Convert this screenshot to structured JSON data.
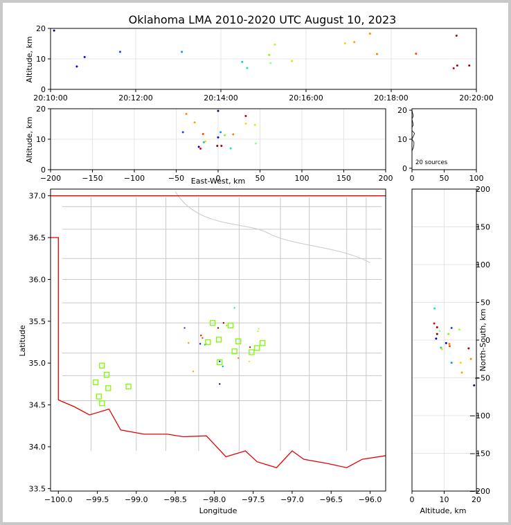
{
  "title": "Oklahoma LMA 2010-2020 UTC August 10, 2023",
  "source_count_label": "20 sources",
  "chart_data": [
    {
      "type": "scatter",
      "id": "time_altitude",
      "ylabel": "Altitude, km",
      "x_ticks": [
        "20:10:00",
        "20:12:00",
        "20:14:00",
        "20:16:00",
        "20:18:00",
        "20:20:00"
      ],
      "y_ticks": [
        0,
        10,
        20
      ],
      "xlim": [
        "20:10:00",
        "20:20:00"
      ],
      "ylim": [
        0,
        20
      ],
      "grid": true
    },
    {
      "type": "scatter",
      "id": "ew_altitude",
      "xlabel": "East-West, km",
      "ylabel": "Altitude, km",
      "x_ticks": [
        -200,
        -150,
        -100,
        -50,
        0,
        50,
        100,
        150,
        200
      ],
      "y_ticks": [
        0,
        10,
        20
      ],
      "xlim": [
        -200,
        200
      ],
      "ylim": [
        0,
        20
      ],
      "grid": true
    },
    {
      "type": "histogram",
      "id": "altitude_histogram",
      "x_ticks": [
        0,
        50,
        100
      ],
      "y_ticks": [
        0,
        10,
        20
      ],
      "xlim": [
        0,
        100
      ],
      "ylim": [
        -0.5,
        20.5
      ]
    },
    {
      "type": "map",
      "id": "plan_view",
      "xlabel": "Longitude",
      "ylabel": "Latitude",
      "x_ticks": [
        -100.0,
        -99.5,
        -99.0,
        -98.5,
        -98.0,
        -97.5,
        -97.0,
        -96.5,
        -96.0
      ],
      "y_ticks": [
        33.5,
        34.0,
        34.5,
        35.0,
        35.5,
        36.0,
        36.5,
        37.0
      ],
      "xlim": [
        -100.1,
        -95.8
      ],
      "ylim": [
        33.47,
        37.08
      ],
      "grid": true,
      "stations": [
        {
          "lon": -99.52,
          "lat": 34.77
        },
        {
          "lon": -99.44,
          "lat": 34.97
        },
        {
          "lon": -99.38,
          "lat": 34.86
        },
        {
          "lon": -99.36,
          "lat": 34.7
        },
        {
          "lon": -99.48,
          "lat": 34.6
        },
        {
          "lon": -99.44,
          "lat": 34.52
        },
        {
          "lon": -99.1,
          "lat": 34.72
        },
        {
          "lon": -98.08,
          "lat": 35.25
        },
        {
          "lon": -98.02,
          "lat": 35.48
        },
        {
          "lon": -97.94,
          "lat": 35.28
        },
        {
          "lon": -97.79,
          "lat": 35.45
        },
        {
          "lon": -97.74,
          "lat": 35.14
        },
        {
          "lon": -97.69,
          "lat": 35.26
        },
        {
          "lon": -97.52,
          "lat": 35.13
        },
        {
          "lon": -97.45,
          "lat": 35.18
        },
        {
          "lon": -97.38,
          "lat": 35.24
        },
        {
          "lon": -97.93,
          "lat": 35.01
        }
      ]
    },
    {
      "type": "scatter",
      "id": "altitude_ns",
      "xlabel": "Altitude, km",
      "ylabel": "North-South, km",
      "x_ticks": [
        0,
        10,
        20
      ],
      "y_ticks": [
        -200,
        -150,
        -100,
        -50,
        0,
        50,
        100,
        150,
        200
      ],
      "xlim": [
        0,
        20
      ],
      "ylim": [
        -200,
        200
      ],
      "grid": true
    }
  ],
  "sources": [
    {
      "t": "20:10:05",
      "alt": 19.3,
      "ew": 0,
      "ns": -60,
      "lon": -97.93,
      "lat": 34.75,
      "c": "#00008b"
    },
    {
      "t": "20:10:37",
      "alt": 7.5,
      "ew": -23,
      "ns": 2,
      "lon": -98.18,
      "lat": 35.23,
      "c": "#0000cd"
    },
    {
      "t": "20:10:48",
      "alt": 10.6,
      "ew": 0,
      "ns": -4,
      "lon": -97.93,
      "lat": 35.02,
      "c": "#0000ff"
    },
    {
      "t": "20:11:38",
      "alt": 12.3,
      "ew": -42,
      "ns": 16,
      "lon": -98.38,
      "lat": 35.42,
      "c": "#1e3cff"
    },
    {
      "t": "20:13:05",
      "alt": 12.3,
      "ew": 3,
      "ns": -30,
      "lon": -97.89,
      "lat": 34.96,
      "c": "#0096ff"
    },
    {
      "t": "20:14:30",
      "alt": 9.0,
      "ew": -17,
      "ns": -10,
      "lon": -98.12,
      "lat": 35.22,
      "c": "#00ced1"
    },
    {
      "t": "20:14:37",
      "alt": 7.0,
      "ew": 15,
      "ns": 42,
      "lon": -97.74,
      "lat": 35.66,
      "c": "#00fa9a"
    },
    {
      "t": "20:15:08",
      "alt": 11.3,
      "ew": 8,
      "ns": 8,
      "lon": -97.84,
      "lat": 35.45,
      "c": "#7cfc00"
    },
    {
      "t": "20:15:10",
      "alt": 8.6,
      "ew": 45,
      "ns": 12,
      "lon": -97.43,
      "lat": 35.41,
      "c": "#98fb98"
    },
    {
      "t": "20:15:16",
      "alt": 14.7,
      "ew": 44,
      "ns": 14,
      "lon": -97.44,
      "lat": 35.38,
      "c": "#adff2f"
    },
    {
      "t": "20:15:40",
      "alt": 9.3,
      "ew": -15,
      "ns": -12,
      "lon": -98.1,
      "lat": 35.23,
      "c": "#e6e600"
    },
    {
      "t": "20:16:55",
      "alt": 15.1,
      "ew": 33,
      "ns": -30,
      "lon": -97.55,
      "lat": 35.02,
      "c": "#ffd700"
    },
    {
      "t": "20:17:08",
      "alt": 15.5,
      "ew": -28,
      "ns": -43,
      "lon": -98.27,
      "lat": 34.9,
      "c": "#ffa500"
    },
    {
      "t": "20:17:30",
      "alt": 18.3,
      "ew": -38,
      "ns": -25,
      "lon": -98.33,
      "lat": 35.24,
      "c": "#ff8c00"
    },
    {
      "t": "20:17:40",
      "alt": 11.6,
      "ew": 18,
      "ns": -5,
      "lon": -97.69,
      "lat": 35.06,
      "c": "#ff7f00"
    },
    {
      "t": "20:18:35",
      "alt": 11.7,
      "ew": -18,
      "ns": -8,
      "lon": -98.15,
      "lat": 35.3,
      "c": "#ff4500"
    },
    {
      "t": "20:19:28",
      "alt": 6.9,
      "ew": -21,
      "ns": 22,
      "lon": -98.17,
      "lat": 35.33,
      "c": "#e60000"
    },
    {
      "t": "20:19:32",
      "alt": 17.6,
      "ew": 33,
      "ns": -11,
      "lon": -97.54,
      "lat": 35.19,
      "c": "#b40000"
    },
    {
      "t": "20:19:33",
      "alt": 7.8,
      "ew": 4,
      "ns": 17,
      "lon": -97.88,
      "lat": 35.48,
      "c": "#a00000"
    },
    {
      "t": "20:19:50",
      "alt": 7.8,
      "ew": -1,
      "ns": 8,
      "lon": -97.95,
      "lat": 35.42,
      "c": "#8b0000"
    }
  ]
}
